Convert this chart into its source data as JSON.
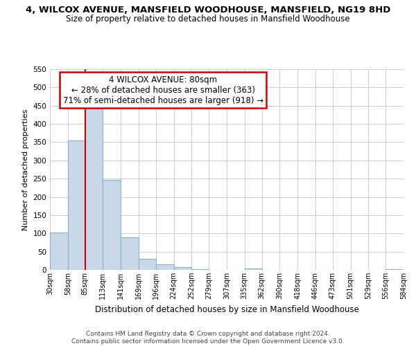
{
  "title": "4, WILCOX AVENUE, MANSFIELD WOODHOUSE, MANSFIELD, NG19 8HD",
  "subtitle": "Size of property relative to detached houses in Mansfield Woodhouse",
  "xlabel": "Distribution of detached houses by size in Mansfield Woodhouse",
  "ylabel": "Number of detached properties",
  "bar_edges": [
    30,
    58,
    85,
    113,
    141,
    169,
    196,
    224,
    252,
    279,
    307,
    335,
    362,
    390,
    418,
    446,
    473,
    501,
    529,
    556,
    584
  ],
  "bar_heights": [
    103,
    355,
    447,
    246,
    89,
    30,
    15,
    7,
    2,
    0,
    0,
    3,
    0,
    0,
    0,
    0,
    0,
    0,
    0,
    2
  ],
  "bar_color": "#c8d8e8",
  "bar_edgecolor": "#8ab0c8",
  "ylim": [
    0,
    550
  ],
  "yticks": [
    0,
    50,
    100,
    150,
    200,
    250,
    300,
    350,
    400,
    450,
    500,
    550
  ],
  "vline_x": 85,
  "vline_color": "#cc0000",
  "annotation_title": "4 WILCOX AVENUE: 80sqm",
  "annotation_line1": "← 28% of detached houses are smaller (363)",
  "annotation_line2": "71% of semi-detached houses are larger (918) →",
  "annotation_box_color": "#ffffff",
  "annotation_box_edgecolor": "#cc0000",
  "tick_labels": [
    "30sqm",
    "58sqm",
    "85sqm",
    "113sqm",
    "141sqm",
    "169sqm",
    "196sqm",
    "224sqm",
    "252sqm",
    "279sqm",
    "307sqm",
    "335sqm",
    "362sqm",
    "390sqm",
    "418sqm",
    "446sqm",
    "473sqm",
    "501sqm",
    "529sqm",
    "556sqm",
    "584sqm"
  ],
  "footer_line1": "Contains HM Land Registry data © Crown copyright and database right 2024.",
  "footer_line2": "Contains public sector information licensed under the Open Government Licence v3.0.",
  "background_color": "#ffffff",
  "grid_color": "#cccccc",
  "title_fontsize": 9.5,
  "subtitle_fontsize": 8.5,
  "ylabel_fontsize": 8.0,
  "xlabel_fontsize": 8.5,
  "annot_fontsize": 8.5,
  "footer_fontsize": 6.5,
  "tick_fontsize": 7.0
}
